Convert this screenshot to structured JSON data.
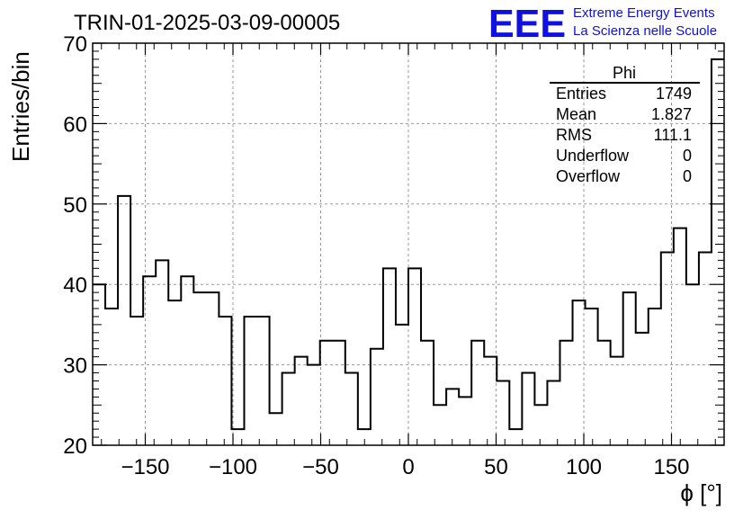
{
  "header": {
    "run_title": "TRIN-01-2025-03-09-00005",
    "logo_text": "EEE",
    "project_line1": "Extreme Energy Events",
    "project_line2": "La Scienza nelle Scuole"
  },
  "colors": {
    "logo_blue": "#1010e0",
    "line": "#000000",
    "grid": "#999999"
  },
  "stats_box": {
    "title": "Phi",
    "rows": [
      {
        "label": "Entries",
        "value": "1749"
      },
      {
        "label": "Mean",
        "value": "1.827"
      },
      {
        "label": "RMS",
        "value": "111.1"
      },
      {
        "label": "Underflow",
        "value": "0"
      },
      {
        "label": "Overflow",
        "value": "0"
      }
    ]
  },
  "chart_data": {
    "type": "histogram",
    "title": "TRIN-01-2025-03-09-00005",
    "xlabel": "ϕ [°]",
    "ylabel": "Entries/bin",
    "xlim": [
      -180,
      180
    ],
    "ylim": [
      20,
      70
    ],
    "bin_width": 7.2,
    "grid": true,
    "x_ticks": [
      -150,
      -100,
      -50,
      0,
      50,
      100,
      150
    ],
    "x_tick_labels": [
      "−150",
      "−100",
      "−50",
      "0",
      "50",
      "100",
      "150"
    ],
    "y_ticks": [
      20,
      30,
      40,
      50,
      60,
      70
    ],
    "y_tick_labels": [
      "20",
      "30",
      "40",
      "50",
      "60",
      "70"
    ],
    "values": [
      40,
      37,
      51,
      36,
      41,
      43,
      38,
      41,
      39,
      39,
      36,
      22,
      36,
      36,
      24,
      29,
      31,
      30,
      33,
      33,
      29,
      22,
      32,
      42,
      35,
      42,
      33,
      25,
      27,
      26,
      33,
      31,
      28,
      22,
      29,
      25,
      28,
      33,
      38,
      37,
      33,
      31,
      39,
      34,
      37,
      44,
      47,
      40,
      44,
      68
    ]
  }
}
